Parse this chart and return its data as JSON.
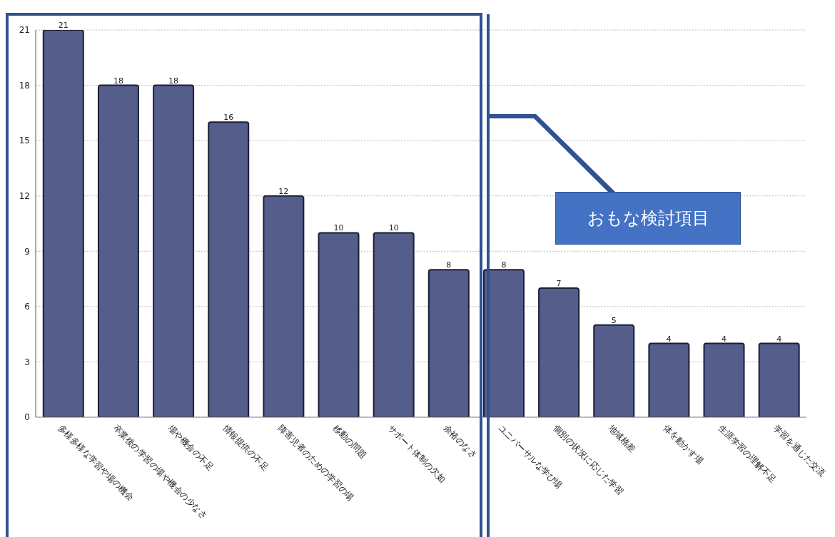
{
  "chart_data": {
    "type": "bar",
    "categories": [
      "多様多様な学習や場の機会",
      "卒業後の学習の場や機会の少なさ",
      "場や機会の不足",
      "情報提供の不足",
      "障害児者のための学習の場",
      "移動の問題",
      "サポート体制の欠如",
      "余裕のなさ",
      "ユニバーサルな学び場",
      "個別の状況に応じた学習",
      "地域格差",
      "体を動かす場",
      "生涯学習の理解不足",
      "学習を通じた交流"
    ],
    "values": [
      21,
      18,
      18,
      16,
      12,
      10,
      10,
      8,
      8,
      7,
      5,
      4,
      4,
      4
    ],
    "color": "#555d8a",
    "ylim": [
      0,
      21
    ],
    "yticks": [
      0,
      3,
      6,
      9,
      12,
      15,
      18,
      21
    ],
    "grid": "y",
    "data_labels": true,
    "annotations": [
      "おもな検討項目"
    ]
  }
}
